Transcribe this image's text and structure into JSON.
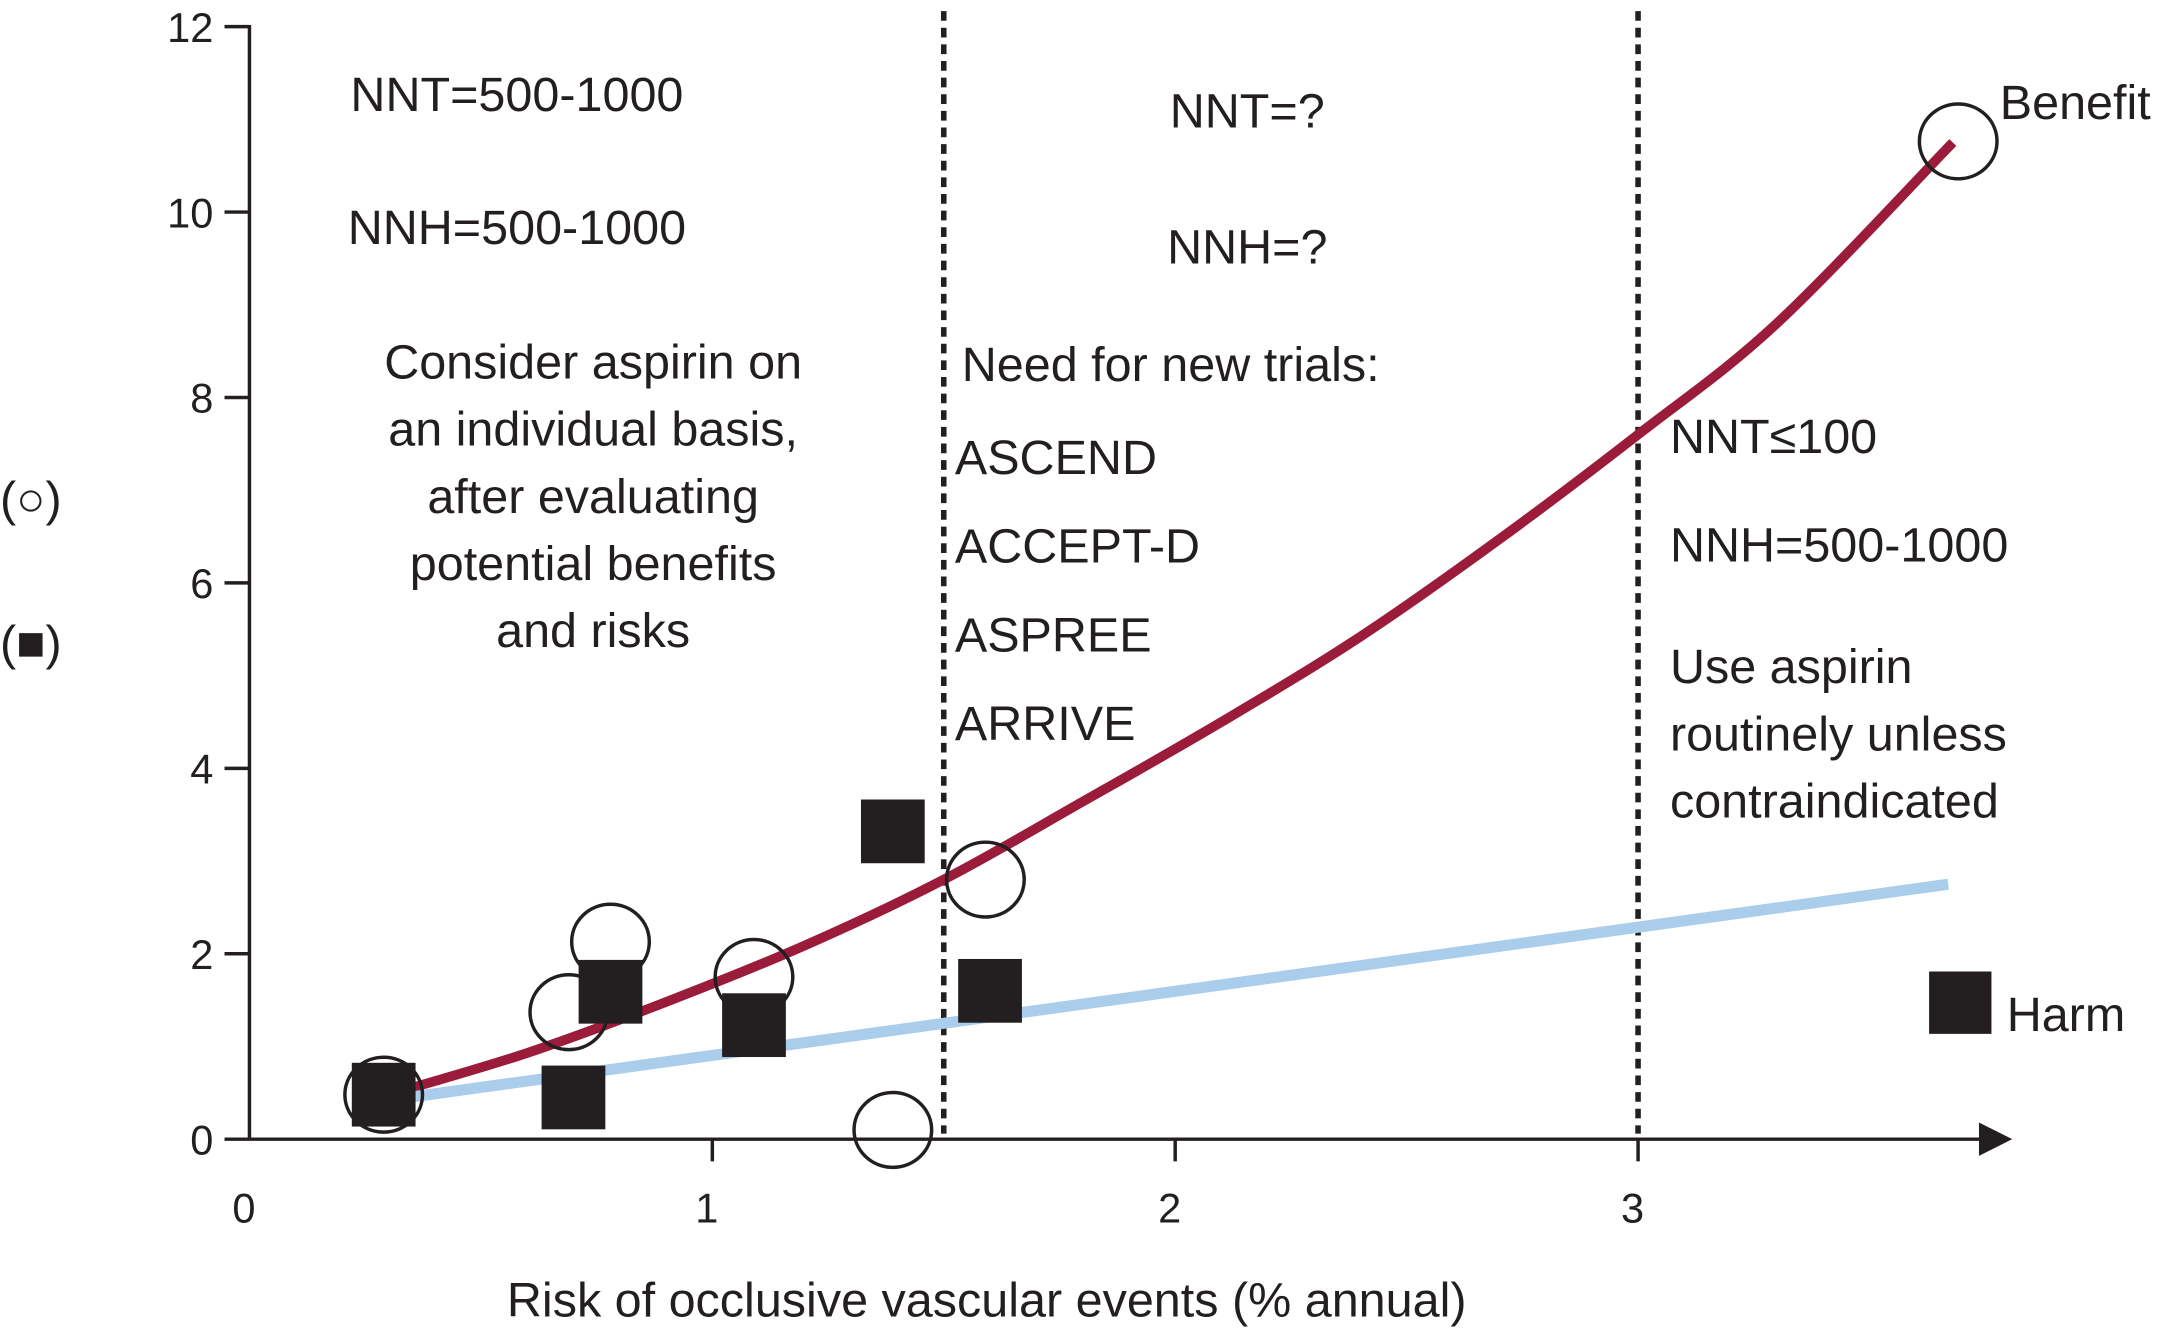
{
  "chart_data": {
    "type": "scatter",
    "title": "",
    "xlabel": "Risk of occlusive vascular events (% annual)",
    "ylabel_symbols": [
      "(○)",
      "(■)"
    ],
    "xlim": [
      0,
      3.8
    ],
    "ylim": [
      0,
      12
    ],
    "x_ticks": [
      "0",
      "1",
      "2",
      "3"
    ],
    "y_ticks": [
      "0",
      "2",
      "4",
      "6",
      "8",
      "10",
      "12"
    ],
    "grid": false,
    "series": [
      {
        "name": "Benefit",
        "marker": "open-circle",
        "points": [
          [
            0.29,
            0.48
          ],
          [
            0.69,
            1.37
          ],
          [
            0.78,
            2.13
          ],
          [
            1.09,
            1.75
          ],
          [
            1.39,
            0.1
          ],
          [
            1.59,
            2.8
          ]
        ]
      },
      {
        "name": "Harm",
        "marker": "filled-square",
        "points": [
          [
            0.29,
            0.48
          ],
          [
            0.7,
            0.45
          ],
          [
            0.78,
            1.59
          ],
          [
            1.09,
            1.23
          ],
          [
            1.39,
            3.32
          ],
          [
            1.6,
            1.6
          ]
        ]
      }
    ],
    "trend_lines": [
      {
        "series": "Benefit",
        "color": "#9b1b3a",
        "points": [
          [
            0.3,
            0.48
          ],
          [
            0.6,
            0.93
          ],
          [
            0.9,
            1.48
          ],
          [
            1.2,
            2.09
          ],
          [
            1.5,
            2.8
          ],
          [
            1.8,
            3.64
          ],
          [
            2.1,
            4.5
          ],
          [
            2.4,
            5.42
          ],
          [
            2.7,
            6.47
          ],
          [
            3.0,
            7.6
          ],
          [
            3.3,
            8.8
          ],
          [
            3.68,
            10.75
          ]
        ]
      },
      {
        "series": "Harm",
        "color": "#a9cdea",
        "points": [
          [
            0.3,
            0.42
          ],
          [
            3.67,
            2.75
          ]
        ]
      }
    ],
    "reference_lines_x": [
      1.5,
      3
    ],
    "legend": {
      "benefit_label": "Benefit",
      "harm_label": "Harm",
      "placement": "right"
    },
    "annotations": {
      "left": {
        "nnt": "NNT=500-1000",
        "nnh": "NNH=500-1000",
        "advice": [
          "Consider aspirin on",
          "an individual basis,",
          "after evaluating",
          "potential benefits",
          "and risks"
        ]
      },
      "middle": {
        "nnt": "NNT=?",
        "nnh": "NNH=?",
        "trials_heading": "Need for new trials:",
        "trials": [
          "ASCEND",
          "ACCEPT-D",
          "ASPREE",
          "ARRIVE"
        ]
      },
      "right": {
        "nnt": "NNT≤100",
        "nnh": "NNH=500-1000",
        "advice": [
          "Use aspirin",
          "routinely unless",
          "contraindicated"
        ]
      }
    }
  }
}
